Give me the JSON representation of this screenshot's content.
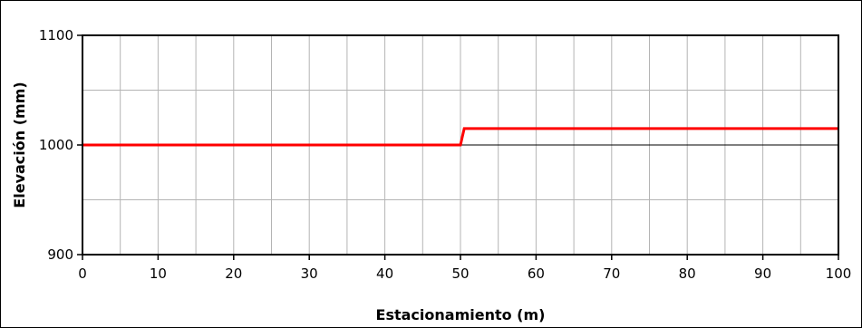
{
  "chart_data": {
    "type": "line",
    "title": "",
    "xlabel": "Estacionamiento (m)",
    "ylabel": "Elevación (mm)",
    "xlim": [
      0,
      100
    ],
    "ylim": [
      900,
      1100
    ],
    "x_ticks": [
      0,
      10,
      20,
      30,
      40,
      50,
      60,
      70,
      80,
      90,
      100
    ],
    "x_tick_labels": [
      "0",
      "10",
      "20",
      "30",
      "40",
      "50",
      "60",
      "70",
      "80",
      "90",
      "100"
    ],
    "y_ticks": [
      900,
      1000,
      1100
    ],
    "y_tick_labels": [
      "900",
      "1000",
      "1100"
    ],
    "x_minor_step": 5,
    "y_minor_step": 50,
    "grid": true,
    "legend": "none",
    "series": [
      {
        "color": "#ff0000",
        "x": [
          0,
          50,
          50.5,
          100
        ],
        "y": [
          1000,
          1000,
          1015,
          1015
        ]
      }
    ],
    "colors": {
      "grid": "#b4b4b4",
      "plot_border": "#000000",
      "reference_line": "#000000"
    }
  }
}
